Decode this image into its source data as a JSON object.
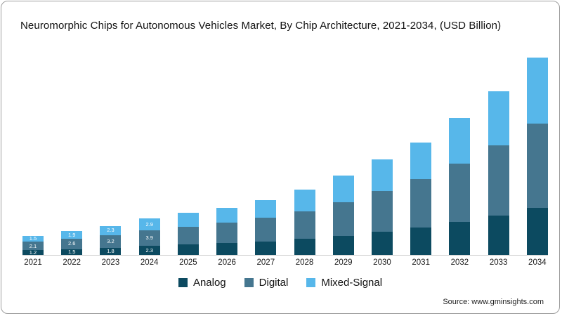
{
  "chart_data": {
    "type": "bar",
    "stacked": true,
    "title": "Neuromorphic Chips for Autonomous Vehicles Market, By Chip Architecture, 2021-2034, (USD Billion)",
    "categories": [
      "2021",
      "2022",
      "2023",
      "2024",
      "2025",
      "2026",
      "2027",
      "2028",
      "2029",
      "2030",
      "2031",
      "2032",
      "2033",
      "2034"
    ],
    "series": [
      {
        "name": "Analog",
        "color": "#0c4a60",
        "values": [
          1.2,
          1.5,
          1.8,
          2.3,
          2.6,
          3.0,
          3.4,
          4.0,
          4.8,
          5.8,
          6.9,
          8.3,
          9.9,
          11.8
        ]
      },
      {
        "name": "Digital",
        "color": "#45768f",
        "values": [
          2.1,
          2.6,
          3.2,
          3.9,
          4.5,
          5.1,
          5.9,
          7.0,
          8.5,
          10.2,
          12.1,
          14.7,
          17.6,
          21.2
        ]
      },
      {
        "name": "Mixed-Signal",
        "color": "#57b7ea",
        "values": [
          1.5,
          1.9,
          2.3,
          2.9,
          3.4,
          3.8,
          4.5,
          5.4,
          6.6,
          7.9,
          9.2,
          11.3,
          13.6,
          16.6
        ]
      }
    ],
    "labeled_categories": [
      "2021",
      "2022",
      "2023",
      "2024"
    ],
    "ylim": [
      0,
      52
    ],
    "legend_position": "bottom",
    "grid": false
  },
  "source": "Source: www.gminsights.com"
}
